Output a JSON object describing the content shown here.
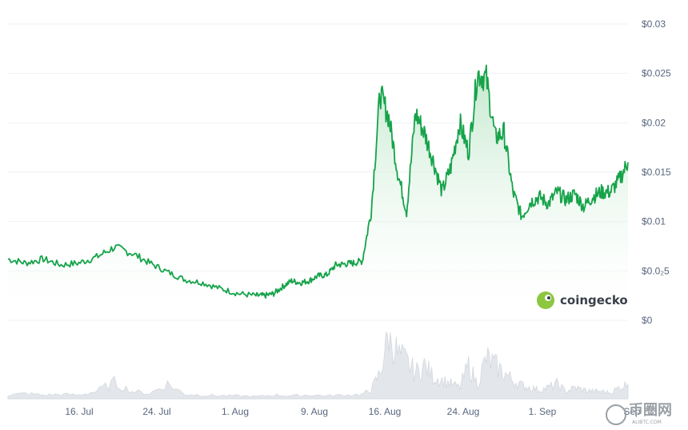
{
  "chart_data": {
    "type": "area",
    "title": "",
    "xlabel": "",
    "ylabel": "",
    "ylim": [
      0,
      0.03
    ],
    "y_ticks": [
      "$0",
      "$0.0₂5",
      "$0.01",
      "$0.015",
      "$0.02",
      "$0.025",
      "$0.03"
    ],
    "x_ticks": [
      "16. Jul",
      "24. Jul",
      "1. Aug",
      "9. Aug",
      "16. Aug",
      "24. Aug",
      "1. Sep",
      "Sep"
    ],
    "grid": true,
    "series": [
      {
        "kind": "price",
        "x": [
          0,
          2,
          4,
          6,
          8,
          10,
          12,
          14,
          16,
          18,
          20,
          22,
          24,
          26,
          28,
          29,
          30,
          31,
          32,
          33,
          34,
          35,
          36,
          37,
          38,
          39,
          40,
          41,
          42,
          43,
          44,
          45,
          46,
          47,
          48,
          49,
          50,
          51,
          52,
          53,
          54,
          55,
          56,
          57,
          58,
          59,
          60,
          61,
          62,
          63,
          64,
          65,
          66,
          67,
          68,
          69,
          70
        ],
        "values": [
          0.0062,
          0.0058,
          0.0062,
          0.0056,
          0.0058,
          0.0064,
          0.0074,
          0.0068,
          0.0058,
          0.0049,
          0.0041,
          0.0038,
          0.0032,
          0.0027,
          0.0025,
          0.0025,
          0.0027,
          0.0034,
          0.004,
          0.0038,
          0.004,
          0.0045,
          0.0046,
          0.0056,
          0.0057,
          0.0058,
          0.006,
          0.011,
          0.023,
          0.0205,
          0.015,
          0.011,
          0.021,
          0.019,
          0.0162,
          0.013,
          0.0155,
          0.02,
          0.017,
          0.025,
          0.0245,
          0.0185,
          0.019,
          0.013,
          0.0105,
          0.012,
          0.0125,
          0.0118,
          0.013,
          0.0122,
          0.0128,
          0.0115,
          0.0125,
          0.013,
          0.013,
          0.0142,
          0.016
        ]
      },
      {
        "kind": "volume",
        "x": [
          0,
          2,
          4,
          6,
          8,
          10,
          12,
          14,
          16,
          18,
          20,
          22,
          24,
          26,
          28,
          30,
          32,
          34,
          36,
          38,
          40,
          41,
          42,
          43,
          44,
          45,
          46,
          47,
          48,
          49,
          50,
          51,
          52,
          53,
          54,
          55,
          56,
          57,
          58,
          59,
          60,
          61,
          62,
          63,
          64,
          65,
          66,
          67,
          68,
          69,
          70
        ],
        "values": [
          0.05,
          0.07,
          0.05,
          0.06,
          0.05,
          0.1,
          0.22,
          0.1,
          0.07,
          0.2,
          0.06,
          0.05,
          0.04,
          0.04,
          0.03,
          0.05,
          0.04,
          0.05,
          0.04,
          0.05,
          0.06,
          0.12,
          0.35,
          0.9,
          0.6,
          0.5,
          0.35,
          0.45,
          0.3,
          0.25,
          0.2,
          0.15,
          0.45,
          0.2,
          0.55,
          0.45,
          0.35,
          0.25,
          0.18,
          0.15,
          0.12,
          0.15,
          0.2,
          0.1,
          0.15,
          0.12,
          0.1,
          0.1,
          0.08,
          0.15,
          0.2
        ]
      }
    ]
  },
  "branding": {
    "name": "coingecko"
  },
  "watermark": {
    "text": "币圈网",
    "url": "ALIBTC.COM"
  },
  "colors": {
    "line": "#16a34a",
    "area_top": "#b7e4c3",
    "volume": "#e3e6ea",
    "grid": "#eff2f5"
  }
}
